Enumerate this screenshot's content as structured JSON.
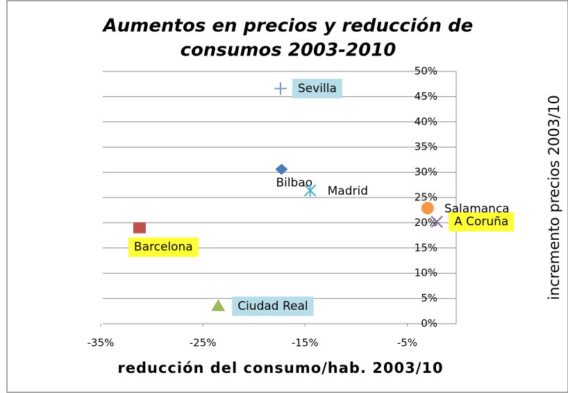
{
  "chart_data": {
    "type": "scatter",
    "title": [
      "Aumentos en precios y  reducción de",
      "consumos 2003-2010"
    ],
    "x_label": "reducción del consumo/hab. 2003/10",
    "y_label": "incremento precios 2003/10",
    "xlim": [
      -35,
      0
    ],
    "xticks": [
      {
        "value": -35,
        "label": "-35%"
      },
      {
        "value": -25,
        "label": "-25%"
      },
      {
        "value": -15,
        "label": "-15%"
      },
      {
        "value": -5,
        "label": "-5%"
      }
    ],
    "ylim": [
      0,
      50
    ],
    "yticks": [
      {
        "value": 0,
        "label": "0%"
      },
      {
        "value": 5,
        "label": "5%"
      },
      {
        "value": 10,
        "label": "10%"
      },
      {
        "value": 15,
        "label": "15%"
      },
      {
        "value": 20,
        "label": "20%"
      },
      {
        "value": 25,
        "label": "25%"
      },
      {
        "value": 30,
        "label": "30%"
      },
      {
        "value": 35,
        "label": "35%"
      },
      {
        "value": 40,
        "label": "40%"
      },
      {
        "value": 45,
        "label": "45%"
      },
      {
        "value": 50,
        "label": "50%"
      }
    ],
    "grid": true,
    "points": [
      {
        "name": "Bilbao",
        "x": -17.3,
        "y": 30.6,
        "color": "#4a7ab5",
        "marker": "diamond"
      },
      {
        "name": "Barcelona",
        "x": -31.2,
        "y": 19.0,
        "color": "#c0504d",
        "marker": "square",
        "label_bg": "#ffff33"
      },
      {
        "name": "Ciudad Real",
        "x": -23.5,
        "y": 3.6,
        "color": "#9bbb59",
        "marker": "triangle",
        "label_bg": "#b7dde8"
      },
      {
        "name": "A Coruña",
        "x": -2.1,
        "y": 20.2,
        "color": "#8064a2",
        "marker": "x",
        "label_bg": "#ffff33"
      },
      {
        "name": "Madrid",
        "x": -14.5,
        "y": 26.4,
        "color": "#4bacc6",
        "marker": "star"
      },
      {
        "name": "Salamanca",
        "x": -3.0,
        "y": 22.9,
        "color": "#f79646",
        "marker": "circle"
      },
      {
        "name": "Sevilla",
        "x": -17.4,
        "y": 46.6,
        "color": "#7b9bd1",
        "marker": "plus",
        "label_bg": "#b7dde8"
      }
    ]
  }
}
